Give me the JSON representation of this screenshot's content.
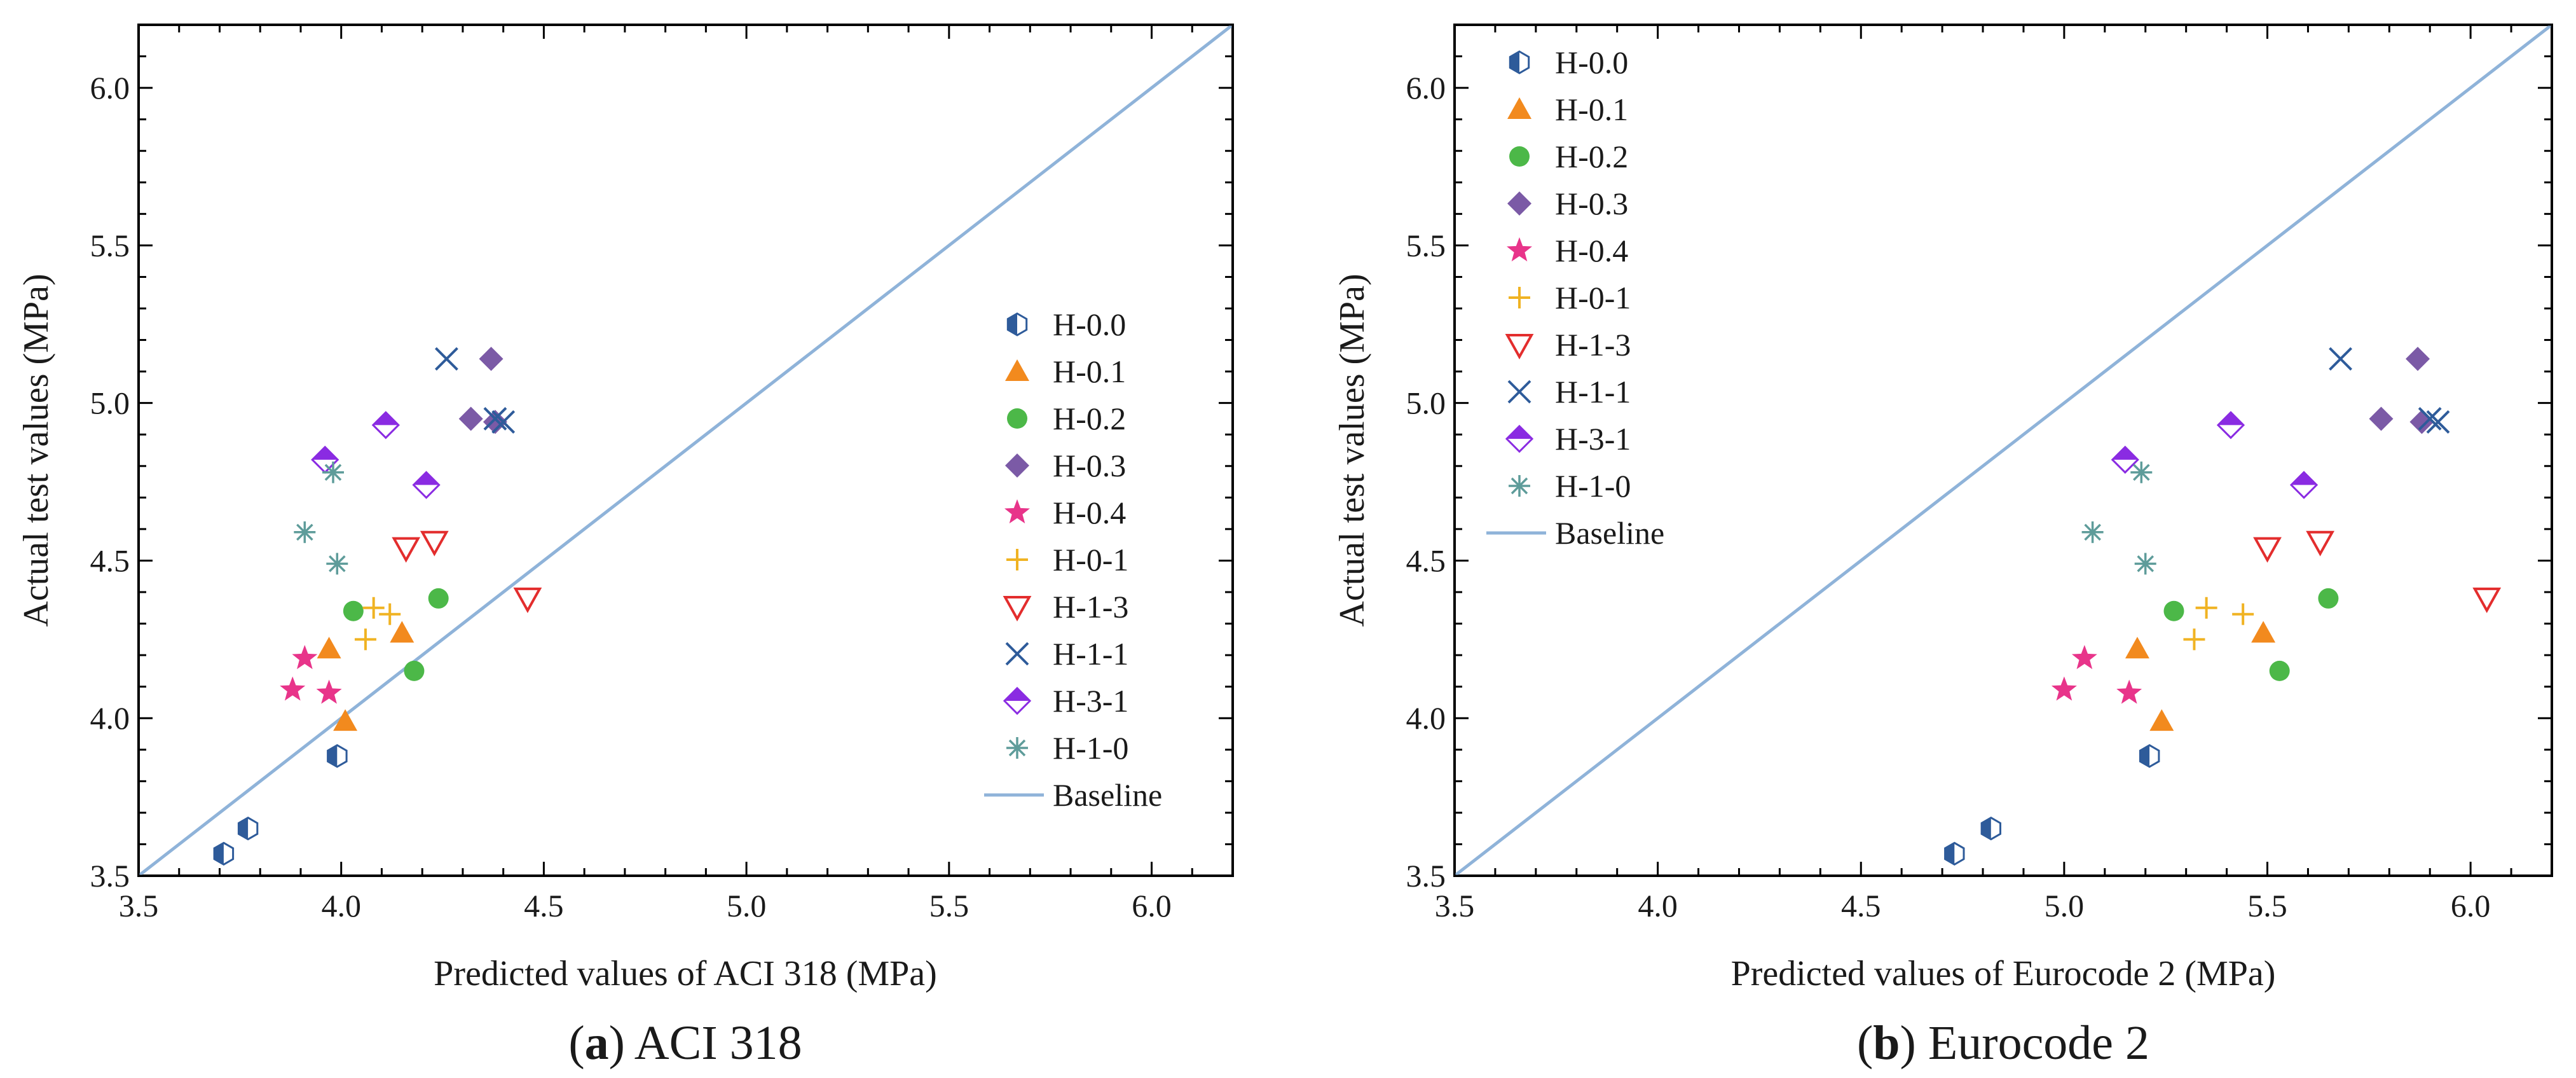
{
  "chart_data": [
    {
      "type": "scatter",
      "panel_letter": "a",
      "caption": "ACI 318",
      "xlabel": "Predicted values of ACI 318 (MPa)",
      "ylabel": "Actual test values (MPa)",
      "xlim": [
        3.5,
        6.2
      ],
      "ylim": [
        3.5,
        6.2
      ],
      "ticks": [
        "3.5",
        "4.0",
        "4.5",
        "5.0",
        "5.5",
        "6.0"
      ],
      "legend_position": "right-middle",
      "baseline": {
        "name": "Baseline",
        "color": "#8fb3d9"
      },
      "series": [
        {
          "name": "H-0.0",
          "marker": "hexagon-half",
          "color": "#2e5b9a",
          "points": [
            [
              3.71,
              3.57
            ],
            [
              3.77,
              3.65
            ],
            [
              3.99,
              3.88
            ]
          ]
        },
        {
          "name": "H-0.1",
          "marker": "triangle",
          "color": "#f28a1e",
          "points": [
            [
              3.97,
              4.22
            ],
            [
              4.01,
              3.99
            ],
            [
              4.15,
              4.27
            ]
          ]
        },
        {
          "name": "H-0.2",
          "marker": "circle",
          "color": "#4cb848",
          "points": [
            [
              4.03,
              4.34
            ],
            [
              4.18,
              4.15
            ],
            [
              4.24,
              4.38
            ]
          ]
        },
        {
          "name": "H-0.3",
          "marker": "diamond",
          "color": "#7b5aa6",
          "points": [
            [
              4.32,
              4.95
            ],
            [
              4.37,
              5.14
            ],
            [
              4.38,
              4.94
            ]
          ]
        },
        {
          "name": "H-0.4",
          "marker": "star",
          "color": "#e8348a",
          "points": [
            [
              3.88,
              4.09
            ],
            [
              3.91,
              4.19
            ],
            [
              3.97,
              4.08
            ]
          ]
        },
        {
          "name": "H-0-1",
          "marker": "plus",
          "color": "#f0b323",
          "points": [
            [
              4.06,
              4.25
            ],
            [
              4.08,
              4.35
            ],
            [
              4.12,
              4.33
            ]
          ]
        },
        {
          "name": "H-1-3",
          "marker": "triangle-down-open",
          "color": "#e32d2d",
          "points": [
            [
              4.16,
              4.54
            ],
            [
              4.23,
              4.56
            ],
            [
              4.46,
              4.38
            ]
          ]
        },
        {
          "name": "H-1-1",
          "marker": "x",
          "color": "#2e5b9a",
          "points": [
            [
              4.26,
              5.14
            ],
            [
              4.38,
              4.95
            ],
            [
              4.4,
              4.94
            ]
          ]
        },
        {
          "name": "H-3-1",
          "marker": "diamond-half",
          "color": "#8a2be2",
          "points": [
            [
              3.96,
              4.82
            ],
            [
              4.11,
              4.93
            ],
            [
              4.21,
              4.74
            ]
          ]
        },
        {
          "name": "H-1-0",
          "marker": "asterisk",
          "color": "#5e9c9a",
          "points": [
            [
              3.91,
              4.59
            ],
            [
              3.98,
              4.78
            ],
            [
              3.99,
              4.49
            ]
          ]
        }
      ]
    },
    {
      "type": "scatter",
      "panel_letter": "b",
      "caption": "Eurocode 2",
      "xlabel": "Predicted values of Eurocode 2 (MPa)",
      "ylabel": "Actual test values (MPa)",
      "xlim": [
        3.5,
        6.2
      ],
      "ylim": [
        3.5,
        6.2
      ],
      "ticks": [
        "3.5",
        "4.0",
        "4.5",
        "5.0",
        "5.5",
        "6.0"
      ],
      "legend_position": "top-left",
      "baseline": {
        "name": "Baseline",
        "color": "#8fb3d9"
      },
      "series": [
        {
          "name": "H-0.0",
          "marker": "hexagon-half",
          "color": "#2e5b9a",
          "points": [
            [
              4.73,
              3.57
            ],
            [
              4.82,
              3.65
            ],
            [
              5.21,
              3.88
            ]
          ]
        },
        {
          "name": "H-0.1",
          "marker": "triangle",
          "color": "#f28a1e",
          "points": [
            [
              5.18,
              4.22
            ],
            [
              5.24,
              3.99
            ],
            [
              5.49,
              4.27
            ]
          ]
        },
        {
          "name": "H-0.2",
          "marker": "circle",
          "color": "#4cb848",
          "points": [
            [
              5.27,
              4.34
            ],
            [
              5.53,
              4.15
            ],
            [
              5.65,
              4.38
            ]
          ]
        },
        {
          "name": "H-0.3",
          "marker": "diamond",
          "color": "#7b5aa6",
          "points": [
            [
              5.78,
              4.95
            ],
            [
              5.87,
              5.14
            ],
            [
              5.88,
              4.94
            ]
          ]
        },
        {
          "name": "H-0.4",
          "marker": "star",
          "color": "#e8348a",
          "points": [
            [
              5.0,
              4.09
            ],
            [
              5.05,
              4.19
            ],
            [
              5.16,
              4.08
            ]
          ]
        },
        {
          "name": "H-0-1",
          "marker": "plus",
          "color": "#f0b323",
          "points": [
            [
              5.32,
              4.25
            ],
            [
              5.35,
              4.35
            ],
            [
              5.44,
              4.33
            ]
          ]
        },
        {
          "name": "H-1-3",
          "marker": "triangle-down-open",
          "color": "#e32d2d",
          "points": [
            [
              5.5,
              4.54
            ],
            [
              5.63,
              4.56
            ],
            [
              6.04,
              4.38
            ]
          ]
        },
        {
          "name": "H-1-1",
          "marker": "x",
          "color": "#2e5b9a",
          "points": [
            [
              5.68,
              5.14
            ],
            [
              5.9,
              4.95
            ],
            [
              5.92,
              4.94
            ]
          ]
        },
        {
          "name": "H-3-1",
          "marker": "diamond-half",
          "color": "#8a2be2",
          "points": [
            [
              5.15,
              4.82
            ],
            [
              5.41,
              4.93
            ],
            [
              5.59,
              4.74
            ]
          ]
        },
        {
          "name": "H-1-0",
          "marker": "asterisk",
          "color": "#5e9c9a",
          "points": [
            [
              5.07,
              4.59
            ],
            [
              5.19,
              4.78
            ],
            [
              5.2,
              4.49
            ]
          ]
        }
      ]
    }
  ]
}
